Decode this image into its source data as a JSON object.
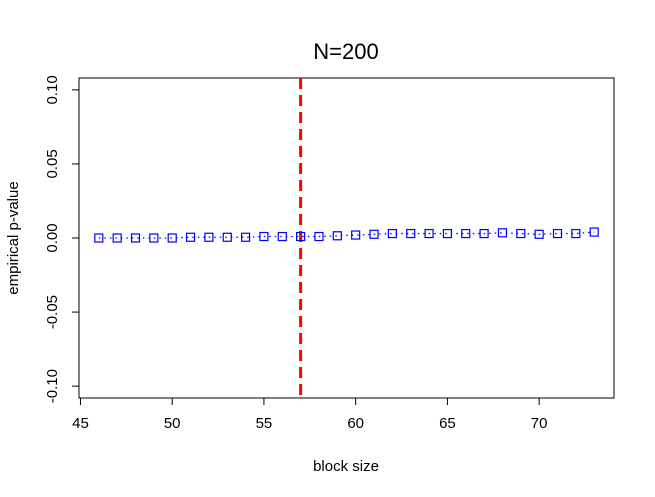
{
  "chart_data": {
    "type": "line",
    "title": "N=200",
    "x_label": "block size",
    "y_label": "empirical p-value",
    "x": [
      46,
      47,
      48,
      49,
      50,
      51,
      52,
      53,
      54,
      55,
      56,
      57,
      58,
      59,
      60,
      61,
      62,
      63,
      64,
      65,
      66,
      67,
      68,
      69,
      70,
      71,
      72,
      73
    ],
    "series": [
      {
        "name": "empirical p-value",
        "color": "#0000ff",
        "values": [
          0,
          0,
          0,
          0,
          0,
          0.0005,
          0.0005,
          0.0005,
          0.0005,
          0.001,
          0.001,
          0.001,
          0.001,
          0.0015,
          0.002,
          0.0025,
          0.003,
          0.003,
          0.003,
          0.003,
          0.003,
          0.003,
          0.0035,
          0.003,
          0.0025,
          0.003,
          0.003,
          0.004
        ]
      }
    ],
    "vline": 57,
    "vline_color": "#ff0000",
    "xlim": [
      44.92,
      74.08
    ],
    "xticks": [
      45,
      50,
      55,
      60,
      65,
      70
    ],
    "ylim": [
      -0.108,
      0.108
    ],
    "yticks": [
      {
        "value": -0.1,
        "label": "-0.10"
      },
      {
        "value": -0.05,
        "label": "-0.05"
      },
      {
        "value": 0,
        "label": "0.00"
      },
      {
        "value": 0.05,
        "label": "0.05"
      },
      {
        "value": 0.1,
        "label": "0.10"
      }
    ]
  }
}
